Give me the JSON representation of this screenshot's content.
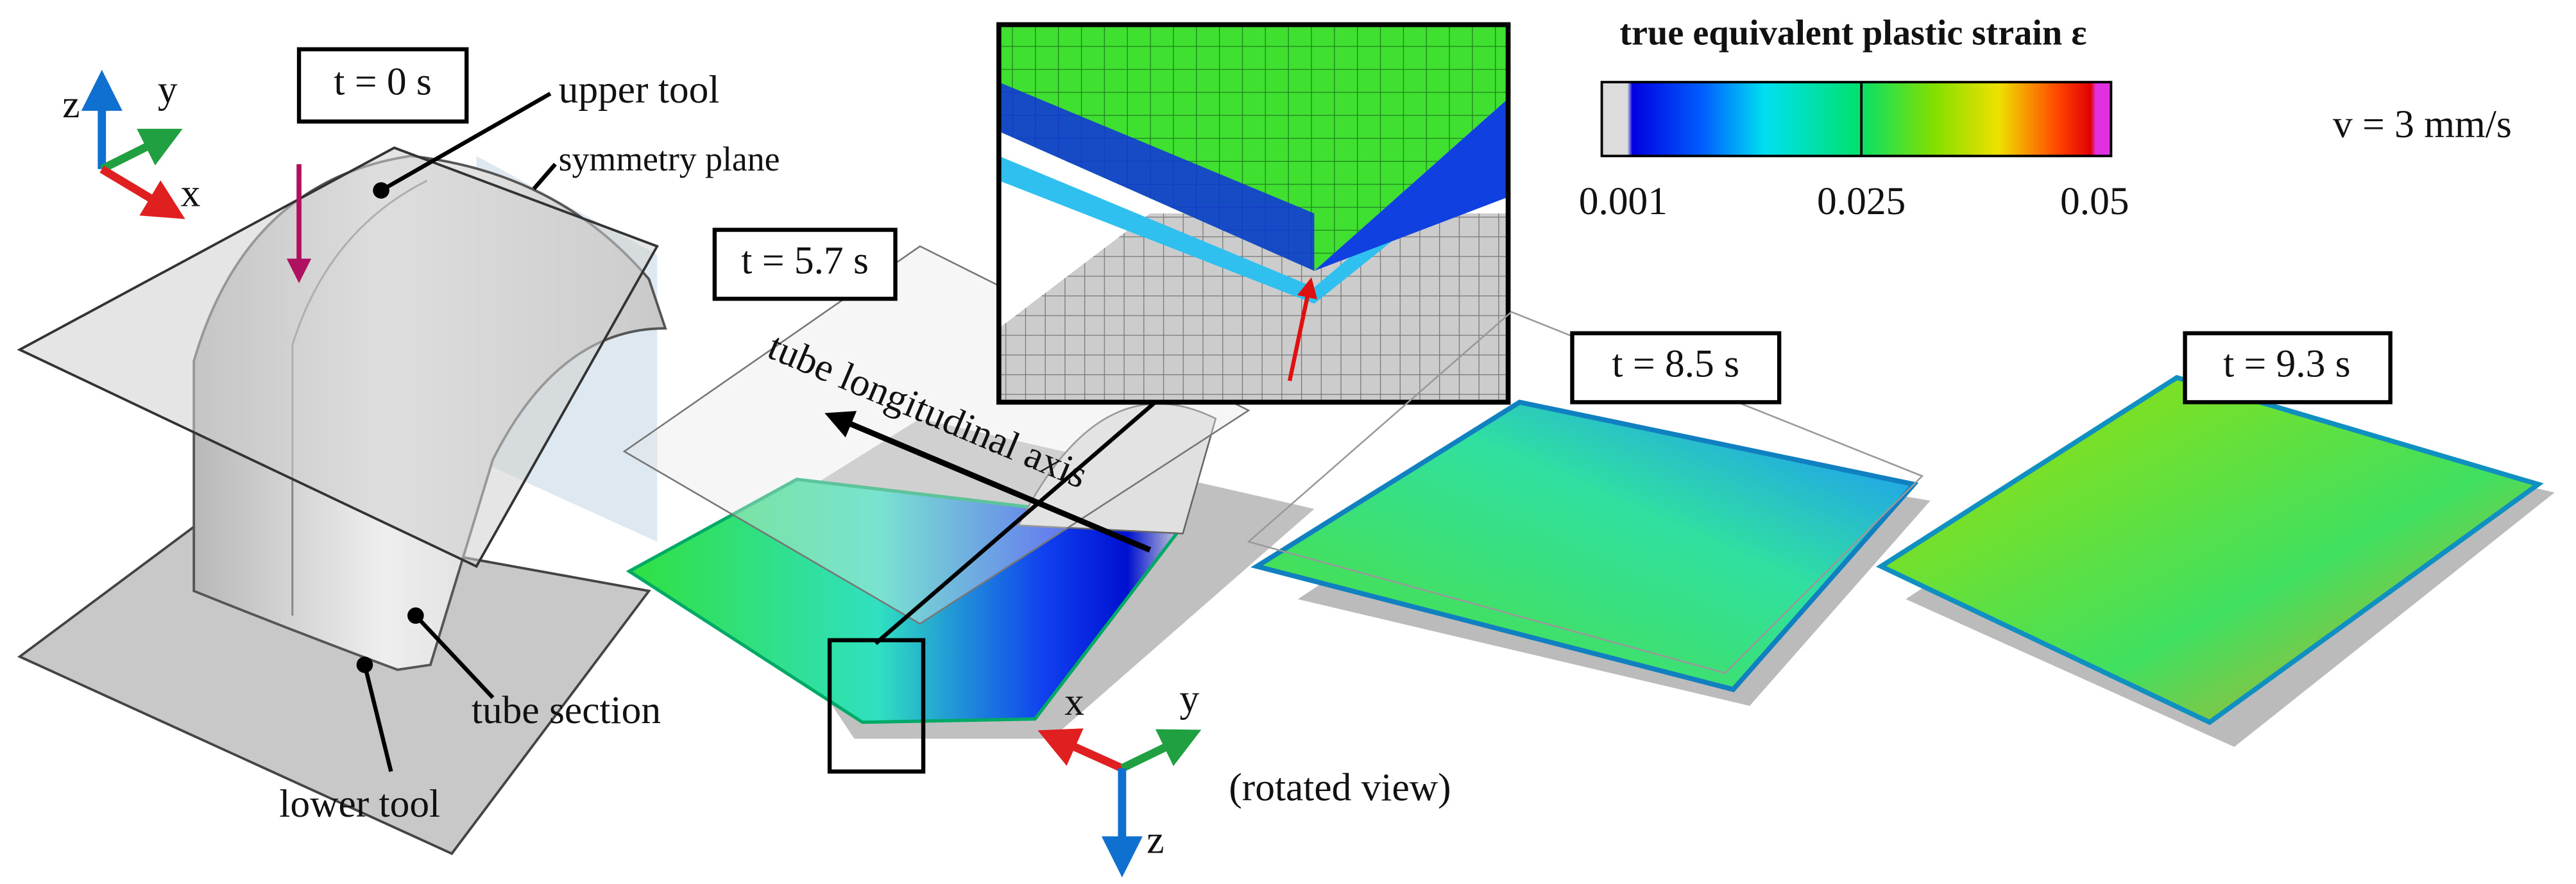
{
  "time_stamps": [
    "t = 0 s",
    "t = 5.7 s",
    "t = 8.5 s",
    "t = 9.3 s"
  ],
  "callouts": {
    "upper_tool": "upper tool",
    "symmetry_plane": "symmetry plane",
    "tube_section": "tube section",
    "lower_tool": "lower tool",
    "axis": "tube longitudinal axis"
  },
  "triad_top": {
    "x": "x",
    "y": "y",
    "z": "z"
  },
  "triad_bottom": {
    "x": "x",
    "y": "y",
    "z": "z",
    "note": "(rotated view)"
  },
  "legend": {
    "title": "true equivalent plastic strain ε",
    "ticks": [
      "0.001",
      "0.025",
      "0.05"
    ]
  },
  "velocity": "v = 3 mm/s"
}
